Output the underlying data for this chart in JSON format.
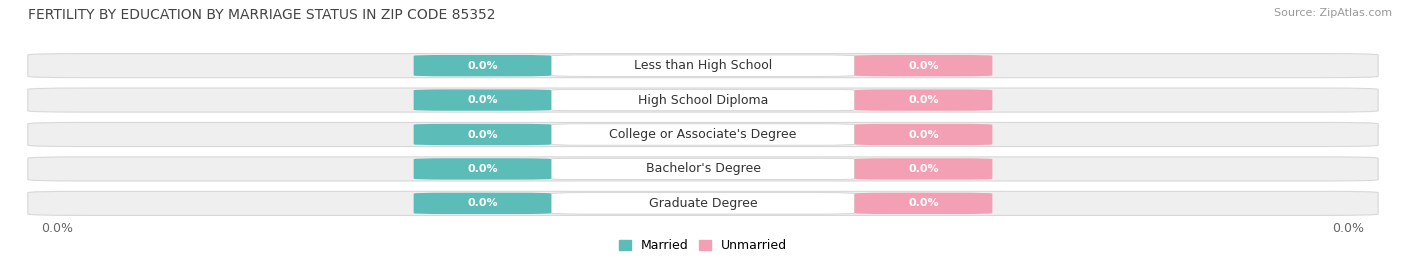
{
  "title": "FERTILITY BY EDUCATION BY MARRIAGE STATUS IN ZIP CODE 85352",
  "source_text": "Source: ZipAtlas.com",
  "categories": [
    "Less than High School",
    "High School Diploma",
    "College or Associate's Degree",
    "Bachelor's Degree",
    "Graduate Degree"
  ],
  "married_values": [
    0.0,
    0.0,
    0.0,
    0.0,
    0.0
  ],
  "unmarried_values": [
    0.0,
    0.0,
    0.0,
    0.0,
    0.0
  ],
  "married_color": "#5bbcb8",
  "unmarried_color": "#f4a0b4",
  "row_bg_color": "#efefef",
  "row_edge_color": "#d8d8d8",
  "x_tick_label_left": "0.0%",
  "x_tick_label_right": "0.0%",
  "legend_married": "Married",
  "legend_unmarried": "Unmarried",
  "title_fontsize": 10,
  "source_fontsize": 8,
  "bar_label_fontsize": 8,
  "category_fontsize": 9,
  "legend_fontsize": 9,
  "axis_tick_fontsize": 9
}
